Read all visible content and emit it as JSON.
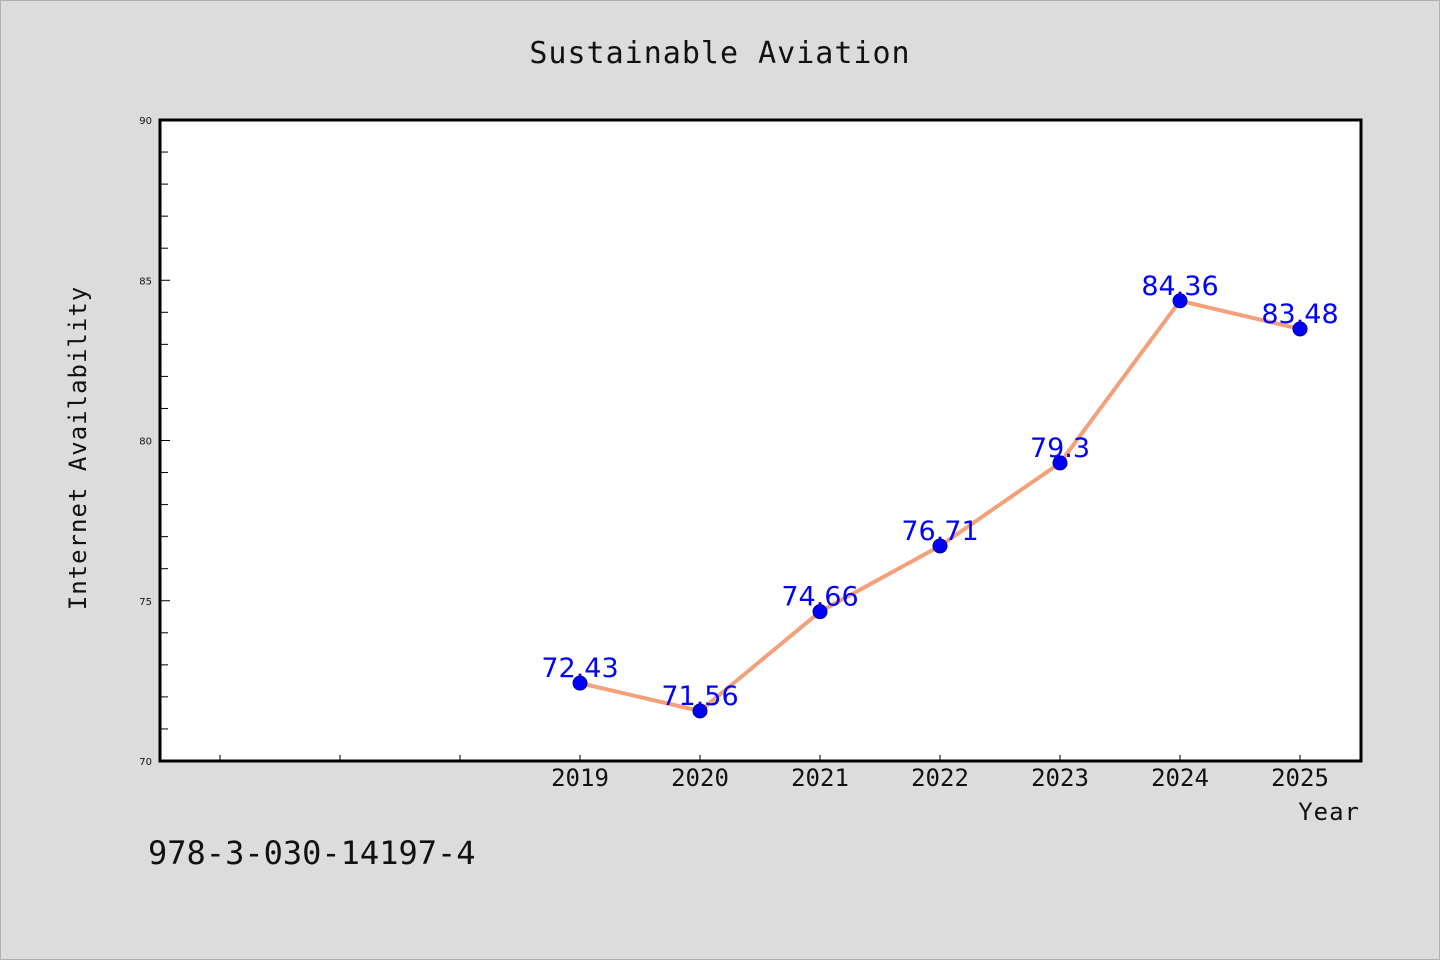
{
  "chart_data": {
    "type": "line",
    "title": "Sustainable Aviation",
    "xlabel": "Year",
    "ylabel": "Internet Availability",
    "categories": [
      "2019",
      "2020",
      "2021",
      "2022",
      "2023",
      "2024",
      "2025"
    ],
    "series": [
      {
        "values": [
          72.43,
          71.56,
          74.66,
          76.71,
          79.3,
          84.36,
          83.48
        ],
        "data_labels": [
          "72.43",
          "71.56",
          "74.66",
          "76.71",
          "79.3",
          "84.36",
          "83.48"
        ],
        "line_color": "#f4a07a",
        "marker_color": "#0000ff"
      }
    ],
    "ylim": [
      70,
      90
    ],
    "y_ticks": [
      "70",
      "75",
      "80",
      "85",
      "90"
    ],
    "grid": false,
    "legend": "none"
  },
  "footnote": "978-3-030-14197-4",
  "colors": {
    "background": "#dcdcdc",
    "plot_background": "#ffffff",
    "line": "#f4a07a",
    "marker": "#0000ff",
    "data_label": "#0000ff"
  }
}
